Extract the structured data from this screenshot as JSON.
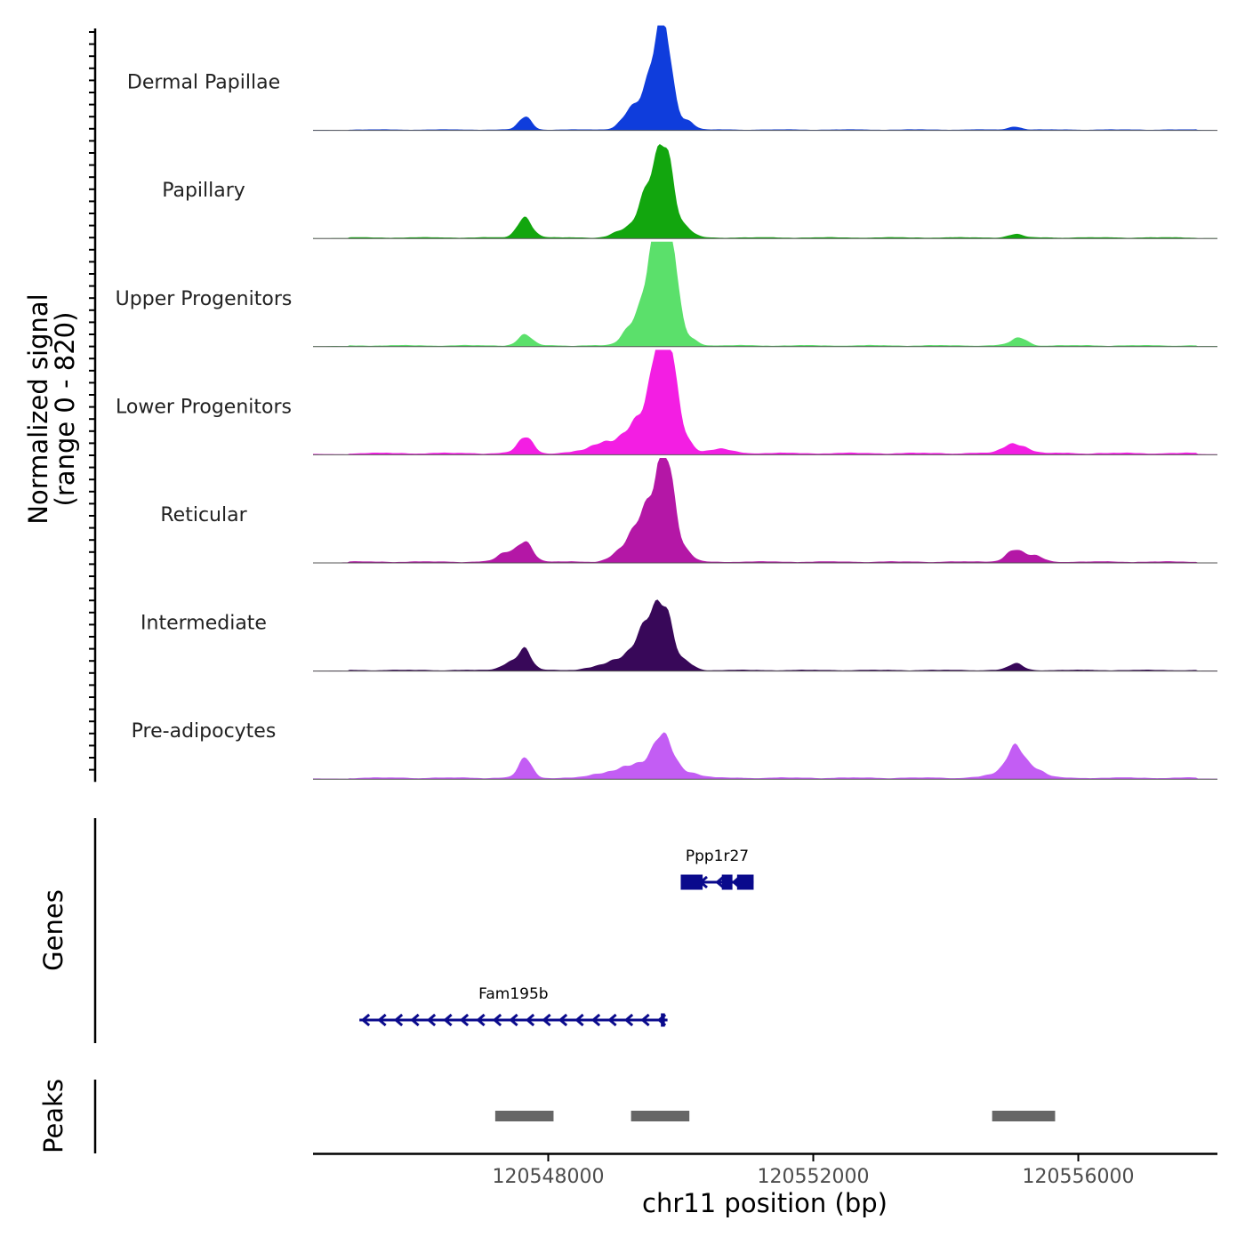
{
  "chart_data": {
    "type": "area",
    "title": "",
    "ylabel_line1": "Normalized signal",
    "ylabel_line2": "(range 0 - 820)",
    "ylim": [
      0,
      820
    ],
    "xlabel": "chr11 position (bp)",
    "xlim": [
      120544450,
      120558100
    ],
    "xticks": [
      120548000,
      120552000,
      120556000
    ],
    "xtick_labels": [
      "120548000",
      "120552000",
      "120556000"
    ],
    "tracks": [
      {
        "name": "Dermal Papillae",
        "color": "#0f3ddc",
        "baseline": 8,
        "peaks": [
          {
            "pos": 120547650,
            "height": 110,
            "width": 90
          },
          {
            "pos": 120549200,
            "height": 100,
            "width": 120
          },
          {
            "pos": 120549550,
            "height": 200,
            "width": 200
          },
          {
            "pos": 120549750,
            "height": 480,
            "width": 120
          },
          {
            "pos": 120549650,
            "height": 300,
            "width": 160
          },
          {
            "pos": 120550100,
            "height": 60,
            "width": 100
          },
          {
            "pos": 120555050,
            "height": 25,
            "width": 90
          }
        ]
      },
      {
        "name": "Papillary",
        "color": "#12a60e",
        "baseline": 10,
        "peaks": [
          {
            "pos": 120547650,
            "height": 160,
            "width": 110
          },
          {
            "pos": 120549150,
            "height": 60,
            "width": 150
          },
          {
            "pos": 120549450,
            "height": 150,
            "width": 130
          },
          {
            "pos": 120549750,
            "height": 500,
            "width": 130
          },
          {
            "pos": 120549650,
            "height": 300,
            "width": 180
          },
          {
            "pos": 120550100,
            "height": 60,
            "width": 100
          },
          {
            "pos": 120555050,
            "height": 25,
            "width": 110
          }
        ]
      },
      {
        "name": "Upper Progenitors",
        "color": "#5be06b",
        "baseline": 12,
        "peaks": [
          {
            "pos": 120547650,
            "height": 80,
            "width": 110
          },
          {
            "pos": 120549250,
            "height": 110,
            "width": 130
          },
          {
            "pos": 120549600,
            "height": 250,
            "width": 200
          },
          {
            "pos": 120549800,
            "height": 790,
            "width": 120
          },
          {
            "pos": 120549650,
            "height": 500,
            "width": 170
          },
          {
            "pos": 120550150,
            "height": 50,
            "width": 110
          },
          {
            "pos": 120555100,
            "height": 60,
            "width": 120
          }
        ]
      },
      {
        "name": "Lower Progenitors",
        "color": "#f31ee3",
        "baseline": 16,
        "peaks": [
          {
            "pos": 120547650,
            "height": 130,
            "width": 110
          },
          {
            "pos": 120549000,
            "height": 100,
            "width": 300
          },
          {
            "pos": 120549450,
            "height": 220,
            "width": 200
          },
          {
            "pos": 120549800,
            "height": 690,
            "width": 130
          },
          {
            "pos": 120549700,
            "height": 450,
            "width": 170
          },
          {
            "pos": 120550100,
            "height": 60,
            "width": 100
          },
          {
            "pos": 120550600,
            "height": 30,
            "width": 200
          },
          {
            "pos": 120555050,
            "height": 80,
            "width": 160
          }
        ]
      },
      {
        "name": "Reticular",
        "color": "#b417a6",
        "baseline": 12,
        "peaks": [
          {
            "pos": 120547650,
            "height": 170,
            "width": 110
          },
          {
            "pos": 120547350,
            "height": 70,
            "width": 120
          },
          {
            "pos": 120549200,
            "height": 110,
            "width": 180
          },
          {
            "pos": 120549500,
            "height": 220,
            "width": 200
          },
          {
            "pos": 120549800,
            "height": 500,
            "width": 130
          },
          {
            "pos": 120549650,
            "height": 330,
            "width": 170
          },
          {
            "pos": 120550100,
            "height": 50,
            "width": 100
          },
          {
            "pos": 120555050,
            "height": 90,
            "width": 140
          },
          {
            "pos": 120555350,
            "height": 40,
            "width": 120
          }
        ]
      },
      {
        "name": "Intermediate",
        "color": "#380859",
        "baseline": 10,
        "peaks": [
          {
            "pos": 120547650,
            "height": 160,
            "width": 100
          },
          {
            "pos": 120547400,
            "height": 60,
            "width": 110
          },
          {
            "pos": 120549000,
            "height": 60,
            "width": 260
          },
          {
            "pos": 120549400,
            "height": 180,
            "width": 180
          },
          {
            "pos": 120549750,
            "height": 370,
            "width": 130
          },
          {
            "pos": 120549600,
            "height": 220,
            "width": 170
          },
          {
            "pos": 120550100,
            "height": 60,
            "width": 100
          },
          {
            "pos": 120555050,
            "height": 50,
            "width": 110
          }
        ]
      },
      {
        "name": "Pre-adipocytes",
        "color": "#c35df4",
        "baseline": 14,
        "peaks": [
          {
            "pos": 120547650,
            "height": 150,
            "width": 100
          },
          {
            "pos": 120549000,
            "height": 50,
            "width": 250
          },
          {
            "pos": 120549400,
            "height": 100,
            "width": 200
          },
          {
            "pos": 120549750,
            "height": 330,
            "width": 140
          },
          {
            "pos": 120550150,
            "height": 40,
            "width": 150
          },
          {
            "pos": 120555050,
            "height": 250,
            "width": 120
          },
          {
            "pos": 120554800,
            "height": 30,
            "width": 200
          },
          {
            "pos": 120555350,
            "height": 70,
            "width": 140
          }
        ]
      }
    ],
    "genes_label": "Genes",
    "genes": [
      {
        "name": "Ppp1r27",
        "strand": "-",
        "start": 120550000,
        "end": 120551100,
        "exons": [
          [
            120550000,
            120550330
          ],
          [
            120550620,
            120550780
          ],
          [
            120550850,
            120551100
          ]
        ]
      },
      {
        "name": "Fam195b",
        "strand": "-",
        "start": 120545150,
        "end": 120549800,
        "exons": [
          [
            120549700,
            120549760
          ]
        ]
      }
    ],
    "gene_color": "#0a0a8c",
    "peaks_label": "Peaks",
    "peak_color": "#666666",
    "peak_regions": [
      [
        120547200,
        120548080
      ],
      [
        120549250,
        120550130
      ],
      [
        120554700,
        120555650
      ]
    ]
  }
}
